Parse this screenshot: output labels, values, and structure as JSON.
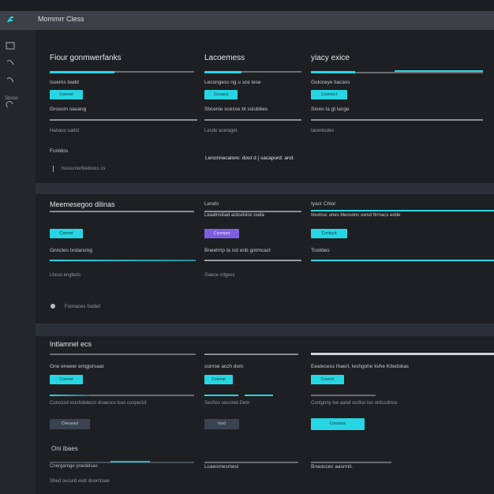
{
  "header": {
    "title": "Mommrr Cless"
  },
  "sidebar": {
    "label": "Sboos"
  },
  "sections": [
    {
      "columns": [
        {
          "title": "Fiour gonmwerfanks",
          "label": "Issems badd",
          "button": "Conmet",
          "subtitle": "Grosom sauang",
          "note": "Hanaou sadst",
          "extra": "Fonidos",
          "item": "Isssscnorfoeloocs cs"
        },
        {
          "title": "Lacoemess",
          "label": "Lecongess ng u sce lese",
          "button": "Conaest",
          "subtitle": "Sbcenie scesse bt sslubbes",
          "note": "Lesde aceraget",
          "extra": "Lenonnecalore: dout d | sacapord: and."
        },
        {
          "title": "yiacy exice",
          "label": "Goloceye tiacass",
          "button": "Conmect",
          "subtitle": "Sioeo ta gt lacge",
          "note": "Iaceresdes"
        }
      ]
    },
    {
      "columns": [
        {
          "title": "Meemesegoo dilinas",
          "button": "Conmet",
          "subtitle": "Gnncles Ixstanong",
          "note": "Lhcos engbots",
          "item": "Foonaces Sadiet"
        },
        {
          "title": "Lendo",
          "label": "Leaatnstiiad aotcelsloc ouda",
          "button": "Conmpet",
          "subtitle": "Bneelrrip la sst enb gotmcact",
          "note": "Gaece crtgecc"
        },
        {
          "title": "Iyacr Chlor",
          "label": "Iioumuc unes bleosonc uwsd ftrmacs edde",
          "button": "Conbuot",
          "subtitle": "Toslldes"
        }
      ]
    },
    {
      "heading": "Intlamnel ecs",
      "columns": [
        {
          "title": "Gne eneeer emgjorsaat",
          "button": "Conmet",
          "note": "Concosd ecsrtoteleccr dnaeocs tcas cospectd:",
          "button2": "Cleeaned",
          "extra": "Oni ibaes",
          "item": "Cnergarnge pnedelsas",
          "foot": "Shed oucurd esdr doorctoae"
        },
        {
          "title": "conrse acch dom",
          "button": "Conmet",
          "note": "Sechos ooconet Dem",
          "button2": "Iood",
          "item": "Lcaesmesmesi"
        },
        {
          "title": "Eeaiecess Ihaerl, Ieshgohe kvhe Kitedskas",
          "button": "Conmct",
          "note": "Contgnny loe aand ocdlso tos ordcodnoa",
          "button2": "Comsooc",
          "item": "Bnaoccec aasnnit."
        }
      ]
    }
  ]
}
